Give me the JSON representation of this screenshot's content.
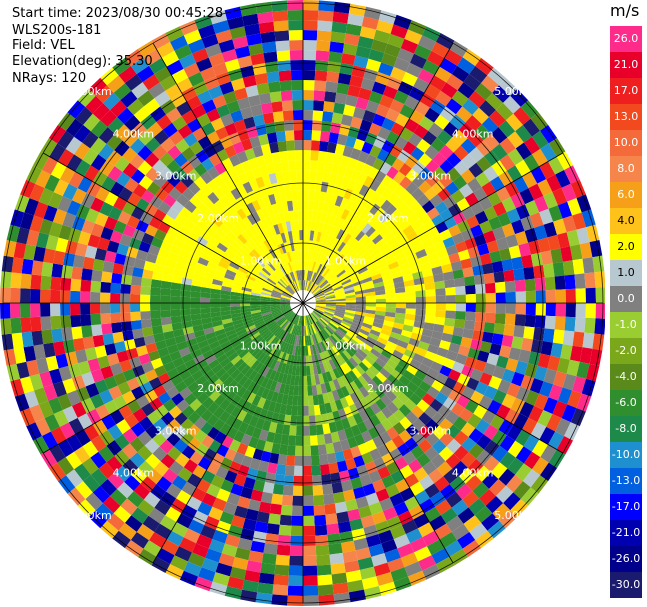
{
  "header": {
    "start_time_label": "Start time:",
    "start_time_value": "2023/08/30 00:45:28",
    "station": "WLS200s-181",
    "field_label": "Field:",
    "field_value": "VEL",
    "elevation_label": "Elevation(deg):",
    "elevation_value": "35.30",
    "nrays_label": "NRays:",
    "nrays_value": "120"
  },
  "colorbar": {
    "unit": "m/s",
    "levels": [
      {
        "label": "26.0",
        "color": "#ff2b8a"
      },
      {
        "label": "21.0",
        "color": "#e8002a"
      },
      {
        "label": "17.0",
        "color": "#f01f1f"
      },
      {
        "label": "13.0",
        "color": "#f24a1e"
      },
      {
        "label": "10.0",
        "color": "#f46a3a"
      },
      {
        "label": "8.0",
        "color": "#f5854a"
      },
      {
        "label": "6.0",
        "color": "#f6a019"
      },
      {
        "label": "4.0",
        "color": "#ffc21a"
      },
      {
        "label": "2.0",
        "color": "#ffff00"
      },
      {
        "label": "1.0",
        "color": "#b8c8d0"
      },
      {
        "label": "0.0",
        "color": "#808080"
      },
      {
        "label": "-1.0",
        "color": "#9acd32"
      },
      {
        "label": "-2.0",
        "color": "#7aa81a"
      },
      {
        "label": "-4.0",
        "color": "#5a8a1a"
      },
      {
        "label": "-6.0",
        "color": "#2f8f2f"
      },
      {
        "label": "-8.0",
        "color": "#1e8a4a"
      },
      {
        "label": "-10.0",
        "color": "#1e90d0"
      },
      {
        "label": "-13.0",
        "color": "#0060e0"
      },
      {
        "label": "-17.0",
        "color": "#0000ff"
      },
      {
        "label": "-21.0",
        "color": "#0000b0"
      },
      {
        "label": "-26.0",
        "color": "#00008b"
      },
      {
        "label": "-30.0",
        "color": "#1a1a6e"
      }
    ]
  },
  "chart_data": {
    "type": "heatmap",
    "field": "VEL",
    "unit": "m/s",
    "range_rings_km": [
      1.0,
      2.0,
      3.0,
      4.0,
      5.0
    ],
    "range_ring_labels": [
      "1.00km",
      "2.00km",
      "3.00km",
      "4.00km",
      "5.00km"
    ],
    "nrays": 120,
    "elevation_deg": 35.3,
    "description_of_pattern": {
      "yellow_positive_region": "north sector out to ~2.5 km",
      "green_negative_region": "south-west sector out to ~2 km",
      "noisy_multicolor": "beyond ~3 km in all directions"
    }
  }
}
